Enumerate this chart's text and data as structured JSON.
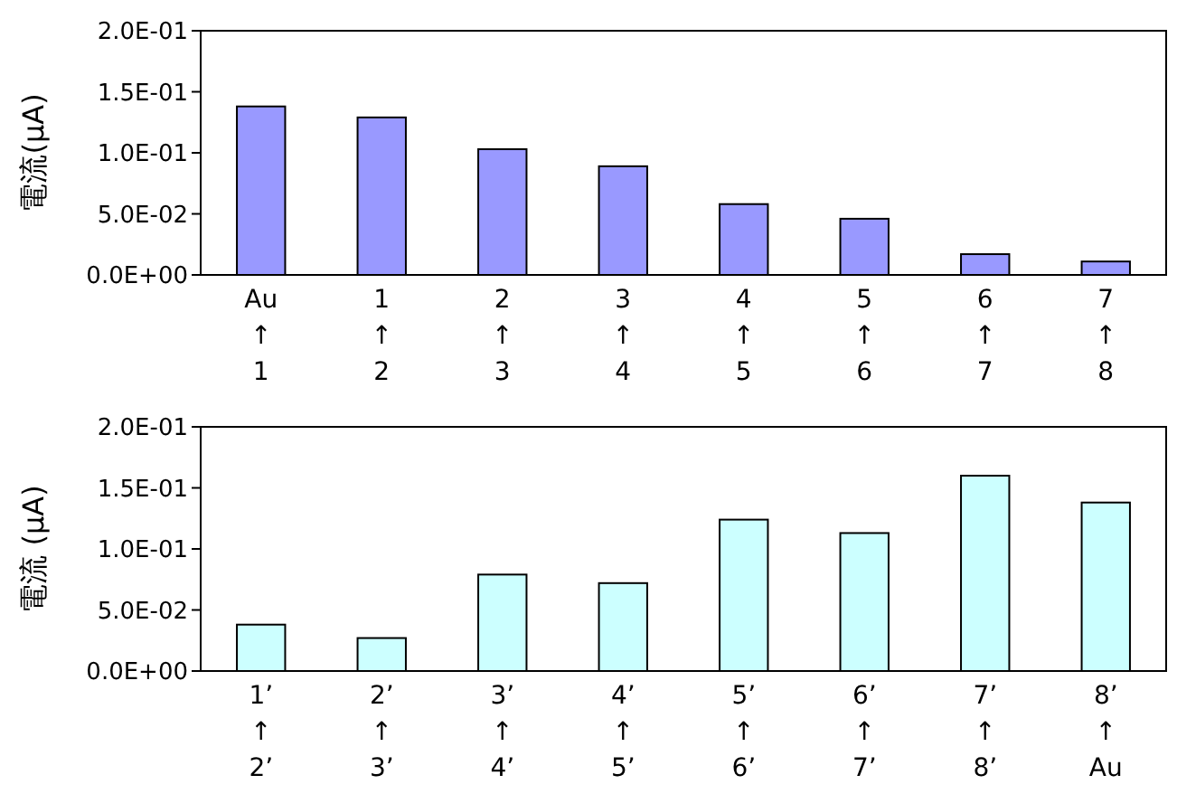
{
  "chart_data": [
    {
      "type": "bar",
      "ylabel": "電流(μA)",
      "categories": [
        "Au\n↑\n1",
        "1\n↑\n2",
        "2\n↑\n3",
        "3\n↑\n4",
        "4\n↑\n5",
        "5\n↑\n6",
        "6\n↑\n7",
        "7\n↑\n8"
      ],
      "values": [
        0.138,
        0.129,
        0.103,
        0.089,
        0.058,
        0.046,
        0.017,
        0.011
      ],
      "color": "#9999ff",
      "ylim": [
        0,
        0.2
      ],
      "yticks": [
        {
          "value": 0,
          "label": "0.0E+00"
        },
        {
          "value": 0.05,
          "label": "5.0E-02"
        },
        {
          "value": 0.1,
          "label": "1.0E-01"
        },
        {
          "value": 0.15,
          "label": "1.5E-01"
        },
        {
          "value": 0.2,
          "label": "2.0E-01"
        }
      ],
      "grid": false
    },
    {
      "type": "bar",
      "ylabel": "電流 (μA)",
      "categories": [
        "1’\n↑\n2’",
        "2’\n↑\n3’",
        "3’\n↑\n4’",
        "4’\n↑\n5’",
        "5’\n↑\n6’",
        "6’\n↑\n7’",
        "7’\n↑\n8’",
        "8’\n↑\nAu"
      ],
      "values": [
        0.038,
        0.027,
        0.079,
        0.072,
        0.124,
        0.113,
        0.16,
        0.138
      ],
      "color": "#ccffff",
      "ylim": [
        0,
        0.2
      ],
      "yticks": [
        {
          "value": 0,
          "label": "0.0E+00"
        },
        {
          "value": 0.05,
          "label": "5.0E-02"
        },
        {
          "value": 0.1,
          "label": "1.0E-01"
        },
        {
          "value": 0.15,
          "label": "1.5E-01"
        },
        {
          "value": 0.2,
          "label": "2.0E-01"
        }
      ],
      "grid": false
    }
  ]
}
